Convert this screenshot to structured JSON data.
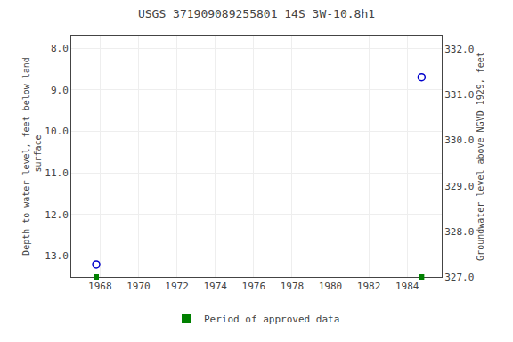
{
  "chart_data": {
    "type": "scatter",
    "title": "USGS 371909089255801 14S 3W-10.8h1",
    "ylabel": "Depth to water level, feet below land\n surface",
    "y2label": "Groundwater level above NGVD 1929, feet",
    "xlim": [
      1966.5,
      1985.8
    ],
    "xticks": [
      1968,
      1970,
      1972,
      1974,
      1976,
      1978,
      1980,
      1982,
      1984
    ],
    "ylim": [
      13.5,
      7.7
    ],
    "yticks": [
      {
        "value": 8.0,
        "label": "8.0"
      },
      {
        "value": 9.0,
        "label": "9.0"
      },
      {
        "value": 10.0,
        "label": "10.0"
      },
      {
        "value": 11.0,
        "label": "11.0"
      },
      {
        "value": 12.0,
        "label": "12.0"
      },
      {
        "value": 13.0,
        "label": "13.0"
      }
    ],
    "y2lim": [
      327.0,
      332.3
    ],
    "y2ticks": [
      {
        "value": 332.0,
        "label": "332.0"
      },
      {
        "value": 331.0,
        "label": "331.0"
      },
      {
        "value": 330.0,
        "label": "330.0"
      },
      {
        "value": 329.0,
        "label": "329.0"
      },
      {
        "value": 328.0,
        "label": "328.0"
      },
      {
        "value": 327.0,
        "label": "327.0"
      }
    ],
    "grid": true,
    "legend": "bottom",
    "series": [
      {
        "x": [
          1967.8,
          1984.75
        ],
        "values": [
          13.2,
          8.7
        ],
        "color": "#0000cc",
        "marker": "open_circle"
      },
      {
        "name": "Period of approved data",
        "x": [
          1967.8,
          1984.75
        ],
        "color": "#008000",
        "marker": "square"
      }
    ]
  }
}
